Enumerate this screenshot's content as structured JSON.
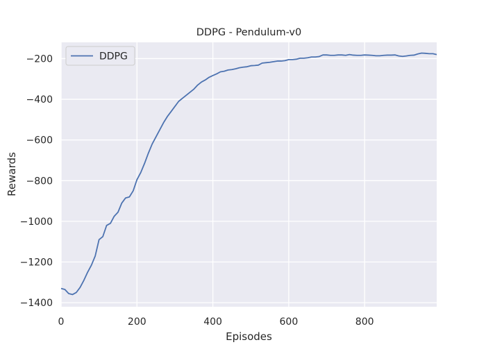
{
  "chart_data": {
    "type": "line",
    "title": "DDPG - Pendulum-v0",
    "xlabel": "Episodes",
    "ylabel": "Rewards",
    "xlim": [
      0,
      990
    ],
    "ylim": [
      -1420,
      -120
    ],
    "xticks": [
      0,
      200,
      400,
      600,
      800
    ],
    "xtick_labels": [
      "0",
      "200",
      "400",
      "600",
      "800"
    ],
    "yticks": [
      -200,
      -400,
      -600,
      -800,
      -1000,
      -1200,
      -1400
    ],
    "ytick_labels": [
      "−200",
      "−400",
      "−600",
      "−800",
      "−1000",
      "−1200",
      "−1400"
    ],
    "grid": true,
    "legend_position": "top-left",
    "series": [
      {
        "name": "DDPG",
        "color": "#4c72b0",
        "x": [
          0,
          10,
          20,
          30,
          40,
          50,
          60,
          70,
          80,
          90,
          100,
          110,
          120,
          130,
          140,
          150,
          160,
          170,
          180,
          190,
          200,
          210,
          220,
          230,
          240,
          250,
          260,
          270,
          280,
          290,
          300,
          310,
          320,
          330,
          340,
          350,
          360,
          370,
          380,
          390,
          400,
          410,
          420,
          430,
          440,
          450,
          460,
          470,
          480,
          490,
          500,
          510,
          520,
          530,
          540,
          550,
          560,
          570,
          580,
          590,
          600,
          610,
          620,
          630,
          640,
          650,
          660,
          670,
          680,
          690,
          700,
          710,
          720,
          730,
          740,
          750,
          760,
          770,
          780,
          790,
          800,
          810,
          820,
          830,
          840,
          850,
          860,
          870,
          880,
          890,
          900,
          910,
          920,
          930,
          940,
          950,
          960,
          970,
          980,
          990
        ],
        "y": [
          -1330,
          -1335,
          -1355,
          -1360,
          -1350,
          -1325,
          -1290,
          -1250,
          -1215,
          -1170,
          -1090,
          -1075,
          -1020,
          -1010,
          -975,
          -955,
          -910,
          -885,
          -880,
          -850,
          -795,
          -760,
          -715,
          -665,
          -620,
          -585,
          -550,
          -515,
          -485,
          -460,
          -435,
          -410,
          -395,
          -380,
          -365,
          -350,
          -330,
          -315,
          -305,
          -292,
          -283,
          -275,
          -265,
          -262,
          -256,
          -254,
          -250,
          -245,
          -242,
          -240,
          -235,
          -234,
          -232,
          -222,
          -220,
          -218,
          -215,
          -212,
          -212,
          -210,
          -205,
          -205,
          -203,
          -198,
          -198,
          -196,
          -192,
          -192,
          -190,
          -182,
          -182,
          -184,
          -184,
          -182,
          -182,
          -184,
          -180,
          -183,
          -184,
          -184,
          -182,
          -183,
          -184,
          -186,
          -186,
          -184,
          -183,
          -183,
          -182,
          -187,
          -189,
          -187,
          -184,
          -183,
          -177,
          -173,
          -174,
          -176,
          -176,
          -180
        ]
      }
    ]
  }
}
